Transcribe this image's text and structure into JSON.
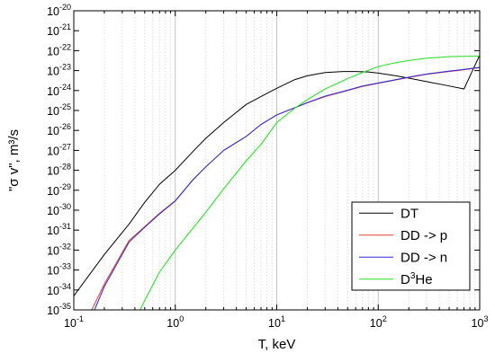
{
  "chart_data": {
    "type": "line",
    "xlabel": "T, keV",
    "ylabel": "\"σ v\", m³/s",
    "x_scale": "log",
    "y_scale": "log",
    "xlim": [
      0.1,
      1000
    ],
    "ylim": [
      1e-35,
      1e-20
    ],
    "grid": "vertical log grid",
    "legend_position": "bottom-right",
    "x_ticks": [
      {
        "base": "10",
        "exp": "-1"
      },
      {
        "base": "10",
        "exp": "0"
      },
      {
        "base": "10",
        "exp": "1"
      },
      {
        "base": "10",
        "exp": "2"
      },
      {
        "base": "10",
        "exp": "3"
      }
    ],
    "y_ticks": [
      {
        "base": "10",
        "exp": "-35"
      },
      {
        "base": "10",
        "exp": "-34"
      },
      {
        "base": "10",
        "exp": "-33"
      },
      {
        "base": "10",
        "exp": "-32"
      },
      {
        "base": "10",
        "exp": "-31"
      },
      {
        "base": "10",
        "exp": "-30"
      },
      {
        "base": "10",
        "exp": "-29"
      },
      {
        "base": "10",
        "exp": "-28"
      },
      {
        "base": "10",
        "exp": "-27"
      },
      {
        "base": "10",
        "exp": "-26"
      },
      {
        "base": "10",
        "exp": "-25"
      },
      {
        "base": "10",
        "exp": "-24"
      },
      {
        "base": "10",
        "exp": "-23"
      },
      {
        "base": "10",
        "exp": "-22"
      },
      {
        "base": "10",
        "exp": "-21"
      },
      {
        "base": "10",
        "exp": "-20"
      }
    ],
    "series": [
      {
        "name": "DT",
        "legend_main": "DT",
        "legend_sup": "",
        "legend_after": "",
        "color": "#000000",
        "x": [
          0.1,
          0.2,
          0.35,
          0.5,
          0.7,
          1,
          1.5,
          2,
          3,
          5,
          7,
          10,
          15,
          20,
          30,
          45,
          60,
          80,
          100,
          150,
          200,
          300,
          500,
          700,
          1000
        ],
        "y": [
          5e-35,
          6e-33,
          2e-31,
          2.5e-30,
          2e-29,
          1e-28,
          9e-28,
          4e-27,
          2.5e-26,
          2e-25,
          5e-25,
          1.3e-24,
          3.5e-24,
          5.5e-24,
          8e-24,
          9e-24,
          9e-24,
          8.5e-24,
          7.5e-24,
          5.5e-24,
          4.2e-24,
          2.8e-24,
          1.7e-24,
          1.2e-24,
          6e-23
        ]
      },
      {
        "name": "DD -> p",
        "legend_main": "DD -> p",
        "legend_sup": "",
        "legend_after": "",
        "color": "#e0403a",
        "x": [
          0.15,
          0.2,
          0.35,
          0.5,
          0.7,
          1,
          1.5,
          2,
          3,
          5,
          7,
          10,
          20,
          30,
          50,
          70,
          100,
          200,
          300,
          500,
          700,
          1000
        ],
        "y": [
          1e-35,
          2e-34,
          3e-32,
          1.5e-31,
          7e-31,
          3e-30,
          3.5e-29,
          1.5e-28,
          1e-27,
          5e-27,
          2e-26,
          6e-26,
          2.4e-25,
          5e-25,
          1e-24,
          1.6e-24,
          2.3e-24,
          4.5e-24,
          6.5e-24,
          9e-24,
          1.1e-23,
          1.4e-23
        ]
      },
      {
        "name": "DD -> n",
        "legend_main": "DD -> n",
        "legend_sup": "",
        "legend_after": "",
        "color": "#2a2ad8",
        "x": [
          0.16,
          0.2,
          0.35,
          0.5,
          0.7,
          1,
          1.5,
          2,
          3,
          5,
          7,
          10,
          20,
          30,
          50,
          70,
          100,
          200,
          300,
          500,
          700,
          1000
        ],
        "y": [
          1e-35,
          1.5e-34,
          2.5e-32,
          1.4e-31,
          6.5e-31,
          2.9e-30,
          3.4e-29,
          1.5e-28,
          1e-27,
          5e-27,
          2e-26,
          6e-26,
          2.5e-25,
          5.3e-25,
          1.05e-24,
          1.7e-24,
          2.4e-24,
          4.7e-24,
          6.8e-24,
          9.5e-24,
          1.15e-23,
          1.45e-23
        ]
      },
      {
        "name": "D3He",
        "legend_main": "D",
        "legend_sup": "3",
        "legend_after": "He",
        "color": "#22dd22",
        "x": [
          0.45,
          0.5,
          0.7,
          1,
          1.5,
          2,
          3,
          5,
          7,
          10,
          15,
          20,
          30,
          50,
          70,
          100,
          150,
          200,
          300,
          500,
          700,
          1000
        ],
        "y": [
          1e-35,
          3e-35,
          8e-34,
          1e-32,
          1.3e-31,
          8e-31,
          1.2e-29,
          3e-28,
          2e-27,
          2.5e-26,
          1.3e-25,
          3.5e-25,
          1.2e-24,
          4e-24,
          8e-24,
          1.6e-23,
          2.5e-23,
          3.2e-23,
          4.2e-23,
          5e-23,
          5.2e-23,
          5.3e-23
        ]
      }
    ]
  }
}
